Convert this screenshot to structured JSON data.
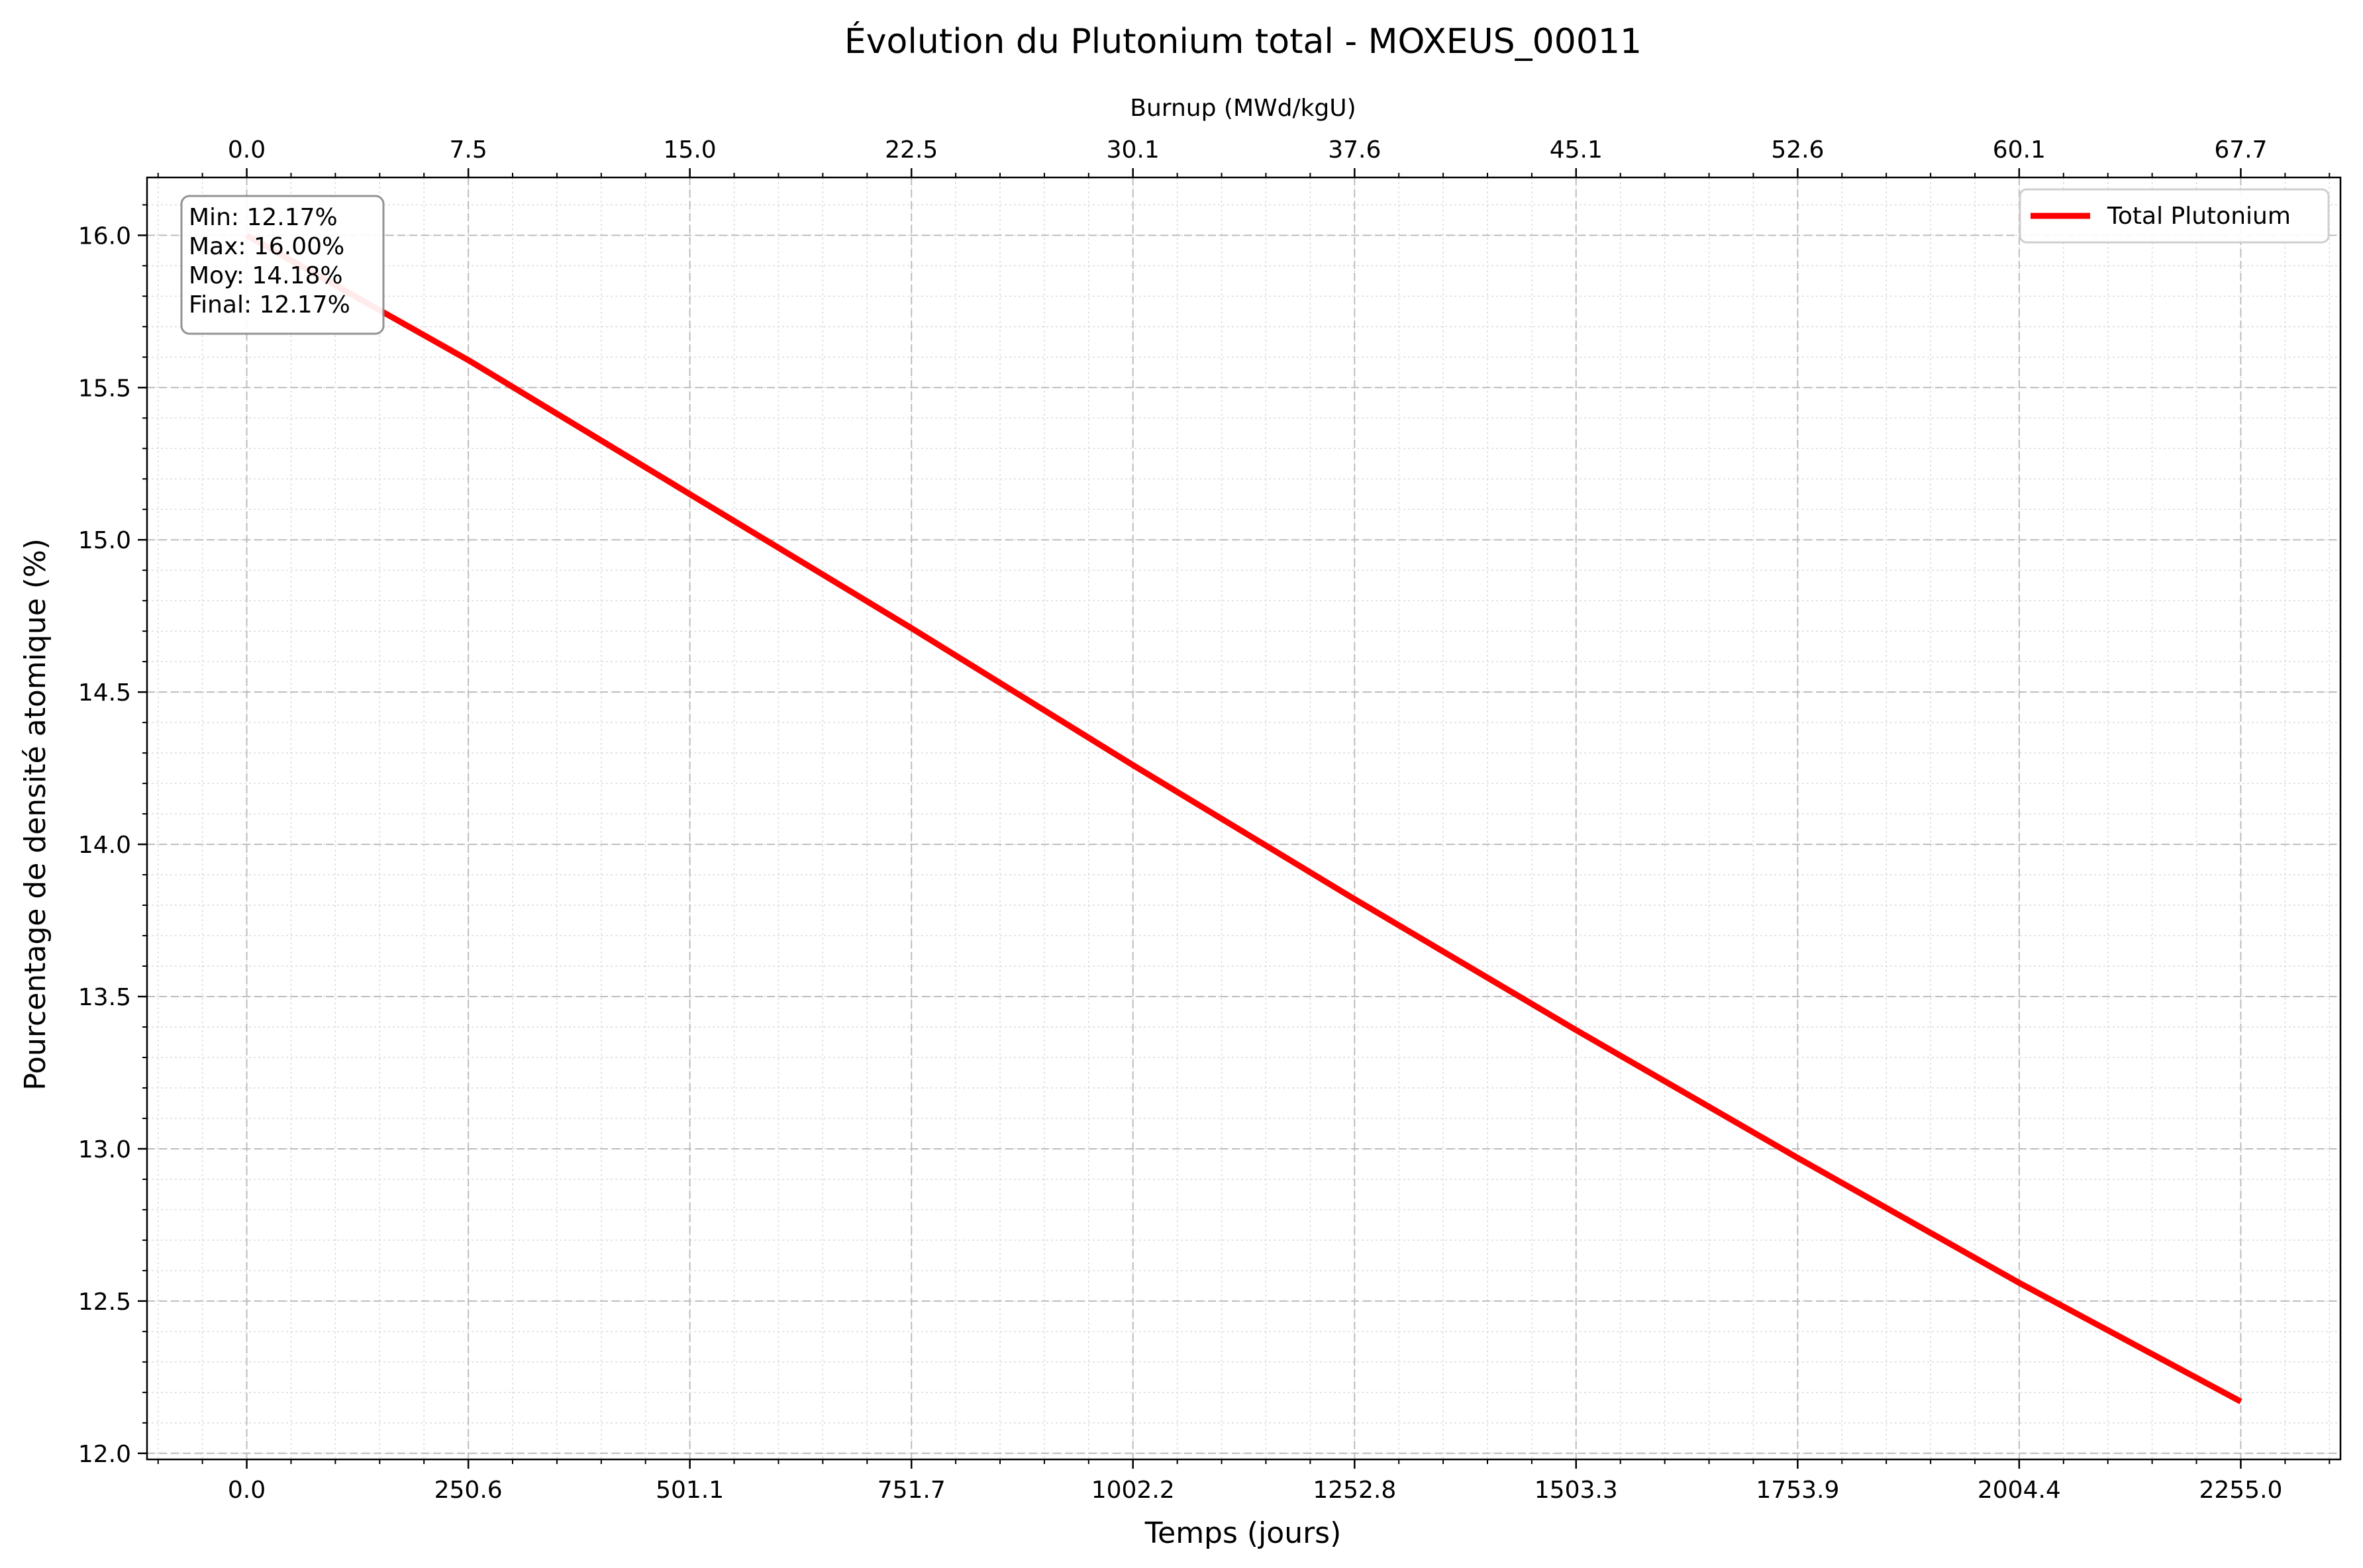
{
  "chart_data": {
    "type": "line",
    "title": "Évolution du Plutonium total - MOXEUS_00011",
    "xlabel": "Temps (jours)",
    "ylabel": "Pourcentage de densité atomique (%)",
    "secondary_xlabel": "Burnup (MWd/kgU)",
    "xlim": [
      -112.75,
      2367.75
    ],
    "ylim": [
      11.98,
      16.19
    ],
    "x_ticks": [
      0.0,
      250.6,
      501.1,
      751.7,
      1002.2,
      1252.8,
      1503.3,
      1753.9,
      2004.4,
      2255.0
    ],
    "x_tick_labels": [
      "0.0",
      "250.6",
      "501.1",
      "751.7",
      "1002.2",
      "1252.8",
      "1503.3",
      "1753.9",
      "2004.4",
      "2255.0"
    ],
    "secondary_x_tick_labels": [
      "0.0",
      "7.5",
      "15.0",
      "22.5",
      "30.1",
      "37.6",
      "45.1",
      "52.6",
      "60.1",
      "67.7"
    ],
    "y_ticks": [
      12.0,
      12.5,
      13.0,
      13.5,
      14.0,
      14.5,
      15.0,
      15.5,
      16.0
    ],
    "y_tick_labels": [
      "12.0",
      "12.5",
      "13.0",
      "13.5",
      "14.0",
      "14.5",
      "15.0",
      "15.5",
      "16.0"
    ],
    "grid": true,
    "legend_position": "top-right",
    "series": [
      {
        "name": "Total Plutonium",
        "color": "#ff0000",
        "x": [
          0.0,
          250.6,
          501.1,
          751.7,
          1002.2,
          1252.8,
          1503.3,
          1753.9,
          2004.4,
          2255.0
        ],
        "y": [
          16.0,
          15.59,
          15.15,
          14.71,
          14.26,
          13.82,
          13.39,
          12.97,
          12.56,
          12.17
        ]
      }
    ],
    "stats_box": [
      "Min: 12.17%",
      "Max: 16.00%",
      "Moy: 14.18%",
      "Final: 12.17%"
    ]
  }
}
